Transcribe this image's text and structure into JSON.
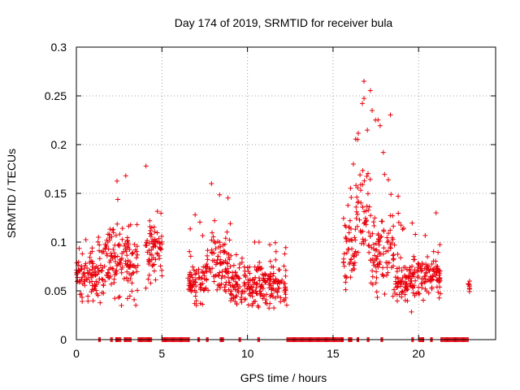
{
  "chart_data": {
    "type": "scatter",
    "title": "Day 174 of 2019, SRMTID for receiver bula",
    "xlabel": "GPS time / hours",
    "ylabel": "SRMTID / TECUs",
    "xlim": [
      0,
      24.5
    ],
    "ylim": [
      0,
      0.3
    ],
    "xticks": [
      0,
      5,
      10,
      15,
      20
    ],
    "xtick_labels": [
      "0",
      "5",
      "10",
      "15",
      "20"
    ],
    "yticks": [
      0,
      0.05,
      0.1,
      0.15,
      0.2,
      0.25,
      0.3
    ],
    "ytick_labels": [
      "0",
      "0.05",
      "0.1",
      "0.15",
      "0.2",
      "0.25",
      "0.3"
    ],
    "grid": true,
    "marker": "+",
    "series_color": "#e8000b",
    "activity_segments": [
      {
        "x0": 0.0,
        "x1": 1.6,
        "center": 0.065,
        "spread": 0.022,
        "peak": 0.105
      },
      {
        "x0": 1.6,
        "x1": 3.6,
        "center": 0.08,
        "spread": 0.032,
        "peak": 0.168
      },
      {
        "x0": 4.0,
        "x1": 5.0,
        "center": 0.09,
        "spread": 0.03,
        "peak": 0.178
      },
      {
        "x0": 6.5,
        "x1": 7.5,
        "center": 0.058,
        "spread": 0.018,
        "peak": 0.128
      },
      {
        "x0": 7.5,
        "x1": 9.0,
        "center": 0.075,
        "spread": 0.03,
        "peak": 0.16
      },
      {
        "x0": 9.0,
        "x1": 10.6,
        "center": 0.055,
        "spread": 0.018,
        "peak": 0.1
      },
      {
        "x0": 10.6,
        "x1": 12.3,
        "center": 0.055,
        "spread": 0.02,
        "peak": 0.1
      },
      {
        "x0": 15.6,
        "x1": 16.3,
        "center": 0.09,
        "spread": 0.035,
        "peak": 0.18
      },
      {
        "x0": 16.3,
        "x1": 17.2,
        "center": 0.13,
        "spread": 0.05,
        "peak": 0.265
      },
      {
        "x0": 17.2,
        "x1": 18.6,
        "center": 0.09,
        "spread": 0.04,
        "peak": 0.235
      },
      {
        "x0": 18.6,
        "x1": 20.2,
        "center": 0.062,
        "spread": 0.02,
        "peak": 0.147
      },
      {
        "x0": 20.2,
        "x1": 21.3,
        "center": 0.065,
        "spread": 0.018,
        "peak": 0.13
      },
      {
        "x0": 22.9,
        "x1": 23.0,
        "center": 0.055,
        "spread": 0.006,
        "peak": 0.06
      }
    ],
    "zero_value_ranges": [
      [
        1.3,
        1.4
      ],
      [
        2.0,
        2.1
      ],
      [
        2.3,
        2.6
      ],
      [
        2.8,
        3.2
      ],
      [
        3.6,
        4.4
      ],
      [
        5.0,
        6.6
      ],
      [
        7.1,
        7.2
      ],
      [
        7.6,
        7.7
      ],
      [
        8.4,
        8.6
      ],
      [
        9.5,
        9.6
      ],
      [
        10.6,
        10.7
      ],
      [
        12.3,
        15.6
      ],
      [
        15.9,
        16.1
      ],
      [
        16.4,
        16.5
      ],
      [
        17.0,
        17.1
      ],
      [
        17.8,
        17.9
      ],
      [
        19.6,
        19.7
      ],
      [
        20.0,
        20.3
      ],
      [
        20.7,
        20.8
      ],
      [
        21.3,
        22.9
      ]
    ]
  }
}
